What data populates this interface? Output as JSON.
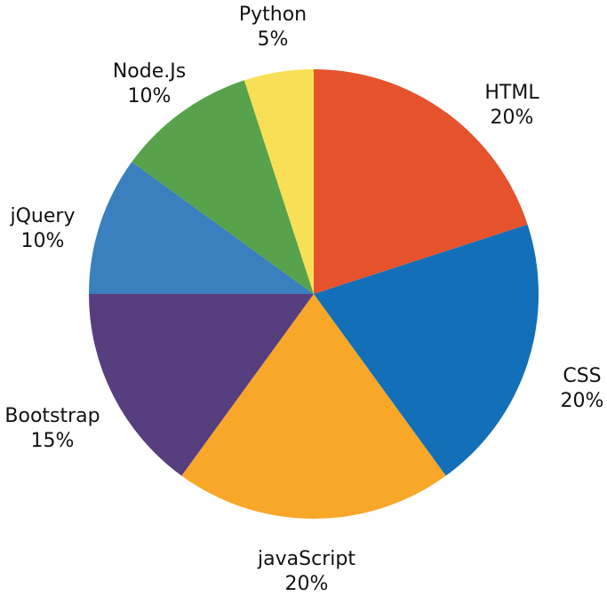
{
  "chart_data": {
    "type": "pie",
    "title": "",
    "legend": "none",
    "slices": [
      {
        "label": "HTML",
        "value": 20,
        "value_label": "20%",
        "color": "#E5532D"
      },
      {
        "label": "CSS",
        "value": 20,
        "value_label": "20%",
        "color": "#126FB8"
      },
      {
        "label": "javaScript",
        "value": 20,
        "value_label": "20%",
        "color": "#F8A728"
      },
      {
        "label": "Bootstrap",
        "value": 15,
        "value_label": "15%",
        "color": "#573E7E"
      },
      {
        "label": "jQuery",
        "value": 10,
        "value_label": "10%",
        "color": "#3A7FBE"
      },
      {
        "label": "Node.Js",
        "value": 10,
        "value_label": "10%",
        "color": "#57A24A"
      },
      {
        "label": "Python",
        "value": 5,
        "value_label": "5%",
        "color": "#F9DF56"
      }
    ]
  }
}
